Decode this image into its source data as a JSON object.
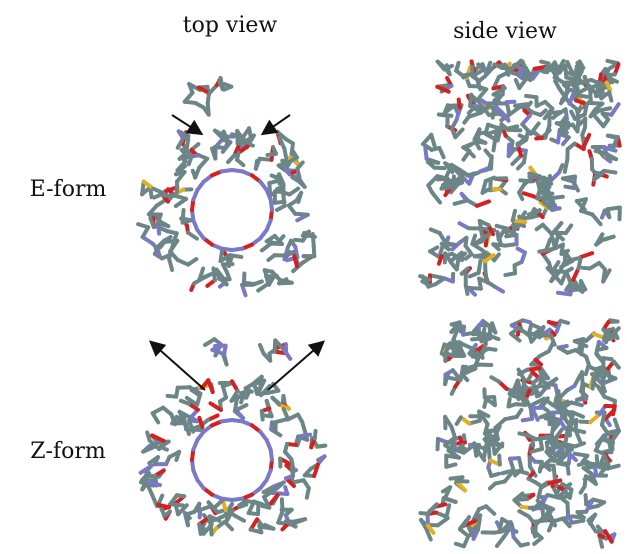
{
  "columns": [
    "top view",
    "side view"
  ],
  "rows": [
    "E-form",
    "Z-form"
  ]
}
